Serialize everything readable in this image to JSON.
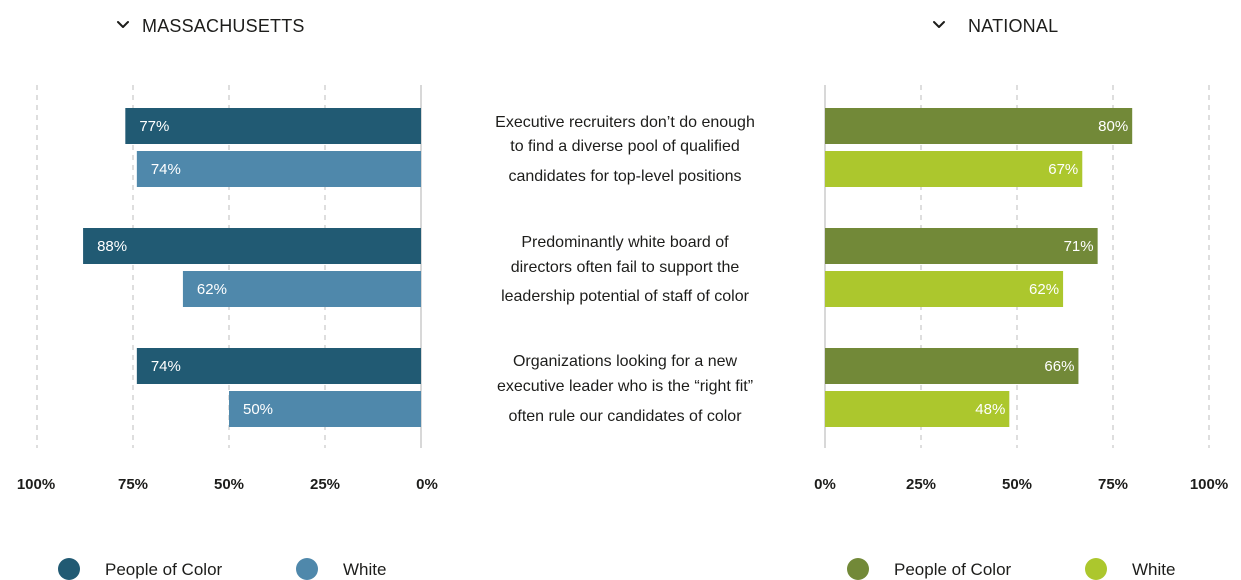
{
  "chart_data": [
    {
      "type": "bar",
      "panel": "ma",
      "title": "MASSACHUSETTS",
      "orientation": "horizontal",
      "direction": "right-to-left",
      "categories": [
        [
          "Executive recruiters don’t do enough",
          "to find a diverse pool of qualified",
          "candidates for top-level positions"
        ],
        [
          "Predominantly white board of",
          "directors often fail to support the",
          "leadership potential of staff of color"
        ],
        [
          "Organizations looking for a new",
          "executive leader who is the “right fit”",
          "often rule our candidates of color"
        ]
      ],
      "series": [
        {
          "name": "People of Color",
          "color": "#215a73",
          "values": [
            77,
            88,
            74
          ]
        },
        {
          "name": "White",
          "color": "#4f88ab",
          "values": [
            74,
            62,
            50
          ]
        }
      ],
      "xlim": [
        0,
        100
      ],
      "ticks": [
        "100%",
        "75%",
        "50%",
        "25%",
        "0%"
      ],
      "grid": true,
      "legend": "bottom-left"
    },
    {
      "type": "bar",
      "panel": "national",
      "title": "NATIONAL",
      "orientation": "horizontal",
      "direction": "left-to-right",
      "series": [
        {
          "name": "People of Color",
          "color": "#728938",
          "values": [
            80,
            71,
            66
          ]
        },
        {
          "name": "White",
          "color": "#acc72d",
          "values": [
            67,
            62,
            48
          ]
        }
      ],
      "xlim": [
        0,
        100
      ],
      "ticks": [
        "0%",
        "25%",
        "50%",
        "75%",
        "100%"
      ],
      "grid": true,
      "legend": "bottom-right"
    }
  ]
}
